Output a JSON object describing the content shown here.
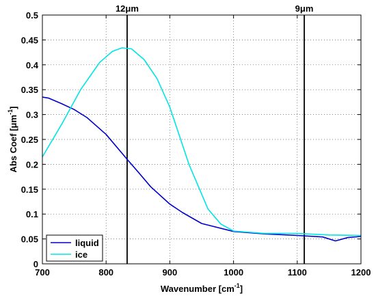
{
  "chart_data": {
    "type": "line",
    "xlabel": "Wavenumber [cm",
    "xlabel_sup": "-1",
    "xlabel_end": "]",
    "ylabel": "Abs Coef [μm",
    "ylabel_sup": "-1",
    "ylabel_end": "]",
    "xlim": [
      700,
      1200
    ],
    "ylim": [
      0,
      0.5
    ],
    "xticks": [
      "700",
      "800",
      "900",
      "1000",
      "1100",
      "1200"
    ],
    "yticks": [
      "0",
      "0.05",
      "0.1",
      "0.15",
      "0.2",
      "0.25",
      "0.3",
      "0.35",
      "0.4",
      "0.45",
      "0.5"
    ],
    "grid": true,
    "legend_position": "bottom-left",
    "vlines": [
      {
        "x": 833,
        "label": "12μm"
      },
      {
        "x": 1111,
        "label": "9μm"
      }
    ],
    "series": [
      {
        "name": "liquid",
        "color": "#0000cc",
        "x": [
          700,
          710,
          730,
          750,
          770,
          800,
          833,
          850,
          870,
          900,
          920,
          950,
          1000,
          1050,
          1100,
          1140,
          1160,
          1180,
          1200
        ],
        "y": [
          0.335,
          0.333,
          0.322,
          0.31,
          0.294,
          0.26,
          0.21,
          0.185,
          0.155,
          0.12,
          0.103,
          0.081,
          0.065,
          0.06,
          0.057,
          0.054,
          0.046,
          0.053,
          0.055
        ]
      },
      {
        "name": "ice",
        "color": "#00e5e5",
        "x": [
          700,
          730,
          760,
          790,
          810,
          825,
          840,
          860,
          880,
          900,
          930,
          960,
          980,
          1000,
          1050,
          1100,
          1150,
          1200
        ],
        "y": [
          0.215,
          0.28,
          0.35,
          0.405,
          0.427,
          0.434,
          0.432,
          0.41,
          0.372,
          0.315,
          0.2,
          0.11,
          0.08,
          0.066,
          0.061,
          0.061,
          0.058,
          0.057
        ]
      }
    ]
  }
}
